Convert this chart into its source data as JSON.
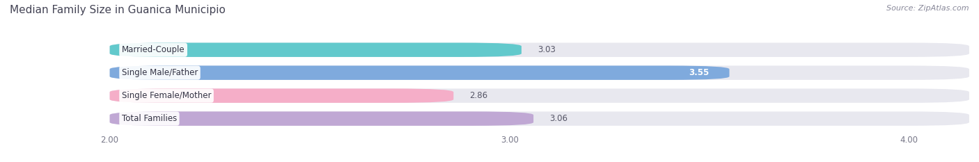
{
  "title": "Median Family Size in Guanica Municipio",
  "source": "Source: ZipAtlas.com",
  "categories": [
    "Married-Couple",
    "Single Male/Father",
    "Single Female/Mother",
    "Total Families"
  ],
  "values": [
    3.03,
    3.55,
    2.86,
    3.06
  ],
  "bar_colors": [
    "#62c9cc",
    "#7faadd",
    "#f5aec8",
    "#c0a8d4"
  ],
  "value_in_bar": [
    false,
    true,
    false,
    false
  ],
  "xlim_min": 1.75,
  "xlim_max": 4.15,
  "xstart": 2.0,
  "xticks": [
    2.0,
    3.0,
    4.0
  ],
  "xtick_labels": [
    "2.00",
    "3.00",
    "4.00"
  ],
  "bar_height": 0.62,
  "background_color": "#ffffff",
  "bar_bg_color": "#e8e8ef",
  "title_color": "#444455",
  "title_fontsize": 11,
  "source_fontsize": 8,
  "label_fontsize": 8.5,
  "value_fontsize": 8.5
}
